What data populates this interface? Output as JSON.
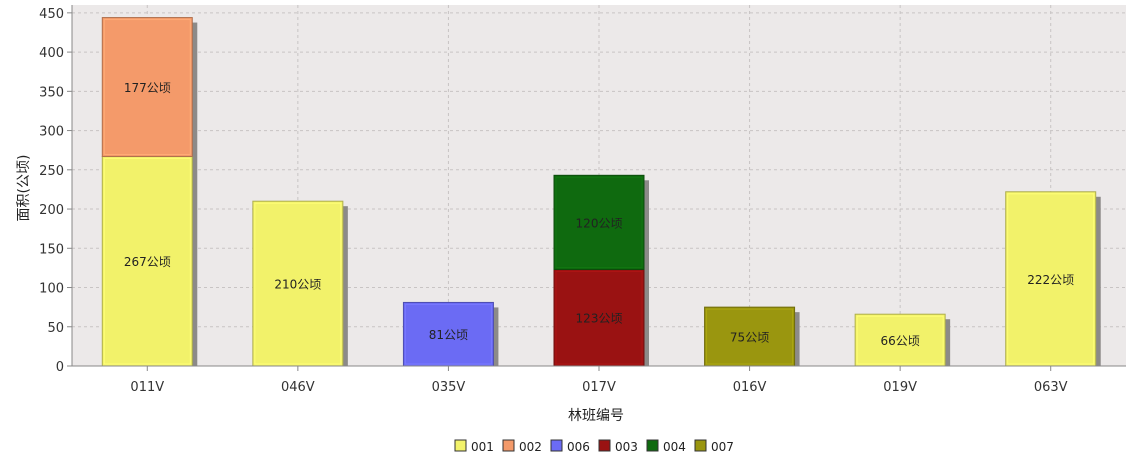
{
  "chart_data": {
    "type": "bar",
    "stacked": true,
    "xlabel": "林班编号",
    "ylabel": "面积(公顷)",
    "ylim": [
      0,
      460
    ],
    "yticks": [
      0,
      50,
      100,
      150,
      200,
      250,
      300,
      350,
      400,
      450
    ],
    "grid": true,
    "legend_position": "bottom",
    "value_suffix": "公顷",
    "categories": [
      "011V",
      "046V",
      "035V",
      "017V",
      "016V",
      "019V",
      "063V"
    ],
    "series": [
      {
        "name": "001",
        "color": "#f2f26a",
        "values": [
          267,
          210,
          null,
          null,
          null,
          66,
          222
        ]
      },
      {
        "name": "002",
        "color": "#f49a6a",
        "values": [
          177,
          null,
          null,
          null,
          null,
          null,
          null
        ]
      },
      {
        "name": "006",
        "color": "#6b6bf4",
        "values": [
          null,
          null,
          81,
          null,
          null,
          null,
          null
        ]
      },
      {
        "name": "003",
        "color": "#9a1212",
        "values": [
          null,
          null,
          null,
          123,
          null,
          null,
          null
        ]
      },
      {
        "name": "004",
        "color": "#0f6a0f",
        "values": [
          null,
          null,
          null,
          120,
          null,
          null,
          null
        ]
      },
      {
        "name": "007",
        "color": "#9a960f",
        "values": [
          null,
          null,
          null,
          null,
          75,
          null,
          null
        ]
      }
    ]
  }
}
